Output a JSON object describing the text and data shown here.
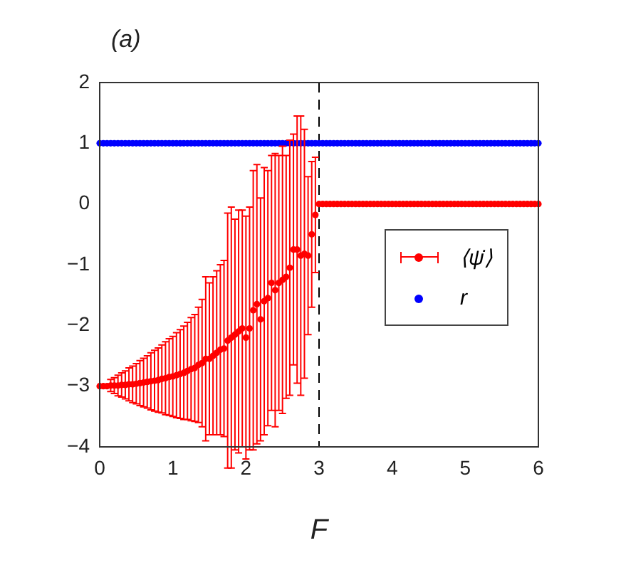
{
  "chart_data": {
    "type": "scatter",
    "title": "(a)",
    "xlabel": "F",
    "xlim": [
      0,
      6
    ],
    "xticks": [
      0,
      1,
      2,
      3,
      4,
      5,
      6
    ],
    "ylim": [
      -4,
      2
    ],
    "yticks": [
      -4,
      -3,
      -2,
      -1,
      0,
      1,
      2
    ],
    "grid": false,
    "legend": "right",
    "marker": "circle",
    "ref_lines": [
      {
        "axis": "x",
        "value": 3,
        "color": "#000000",
        "line_style": "dashed"
      }
    ],
    "series": [
      {
        "name": "⟨ψ̇⟩",
        "color": "#ff0000",
        "x": [
          0,
          0.05,
          0.1,
          0.15,
          0.2,
          0.25,
          0.3,
          0.35,
          0.4,
          0.45,
          0.5,
          0.55,
          0.6,
          0.65,
          0.7,
          0.75,
          0.8,
          0.85,
          0.9,
          0.95,
          1,
          1.05,
          1.1,
          1.15,
          1.2,
          1.25,
          1.3,
          1.35,
          1.4,
          1.45,
          1.5,
          1.55,
          1.6,
          1.65,
          1.7,
          1.75,
          1.8,
          1.85,
          1.9,
          1.95,
          2,
          2.05,
          2.1,
          2.15,
          2.2,
          2.25,
          2.3,
          2.35,
          2.4,
          2.45,
          2.5,
          2.55,
          2.6,
          2.65,
          2.7,
          2.75,
          2.8,
          2.85,
          2.9,
          2.95,
          3,
          3.05,
          3.1,
          3.15,
          3.2,
          3.25,
          3.3,
          3.35,
          3.4,
          3.45,
          3.5,
          3.55,
          3.6,
          3.65,
          3.7,
          3.75,
          3.8,
          3.85,
          3.9,
          3.95,
          4,
          4.05,
          4.1,
          4.15,
          4.2,
          4.25,
          4.3,
          4.35,
          4.4,
          4.45,
          4.5,
          4.55,
          4.6,
          4.65,
          4.7,
          4.75,
          4.8,
          4.85,
          4.9,
          4.95,
          5,
          5.05,
          5.1,
          5.15,
          5.2,
          5.25,
          5.3,
          5.35,
          5.4,
          5.45,
          5.5,
          5.55,
          5.6,
          5.65,
          5.7,
          5.75,
          5.8,
          5.85,
          5.9,
          5.95,
          6
        ],
        "values": [
          -3,
          -3,
          -3,
          -2.99,
          -2.99,
          -2.99,
          -2.98,
          -2.98,
          -2.97,
          -2.97,
          -2.96,
          -2.95,
          -2.94,
          -2.93,
          -2.92,
          -2.91,
          -2.9,
          -2.88,
          -2.87,
          -2.85,
          -2.84,
          -2.82,
          -2.8,
          -2.78,
          -2.75,
          -2.72,
          -2.7,
          -2.65,
          -2.62,
          -2.55,
          -2.55,
          -2.5,
          -2.45,
          -2.4,
          -2.38,
          -2.25,
          -2.2,
          -2.15,
          -2.1,
          -2.05,
          -2.2,
          -2.05,
          -1.75,
          -1.65,
          -1.9,
          -1.6,
          -1.55,
          -1.3,
          -1.42,
          -1.3,
          -1.25,
          -1.2,
          -1.05,
          -0.75,
          -0.75,
          -0.85,
          -0.82,
          -0.85,
          -0.5,
          -0.18,
          0,
          0,
          0,
          0,
          0,
          0,
          0,
          0,
          0,
          0,
          0,
          0,
          0,
          0,
          0,
          0,
          0,
          0,
          0,
          0,
          0,
          0,
          0,
          0,
          0,
          0,
          0,
          0,
          0,
          0,
          0,
          0,
          0,
          0,
          0,
          0,
          0,
          0,
          0,
          0,
          0,
          0,
          0,
          0,
          0,
          0,
          0,
          0,
          0,
          0,
          0,
          0,
          0,
          0,
          0,
          0,
          0,
          0,
          0,
          0,
          0
        ],
        "errors": [
          null,
          null,
          null,
          0.1,
          0.13,
          0.17,
          0.2,
          0.23,
          0.27,
          0.3,
          0.33,
          0.37,
          0.4,
          0.43,
          0.47,
          0.5,
          0.53,
          0.56,
          0.6,
          0.63,
          0.66,
          0.7,
          0.73,
          0.77,
          0.8,
          0.85,
          0.88,
          0.95,
          1.05,
          1.35,
          1.25,
          1.3,
          1.35,
          1.4,
          1.45,
          2.1,
          2.15,
          1.9,
          2,
          1.95,
          2,
          2,
          2.3,
          2.3,
          2,
          2.2,
          2.1,
          2.1,
          2.25,
          2.1,
          2.2,
          2,
          2.1,
          1.9,
          2.2,
          2.3,
          2.05,
          1.3,
          1.2,
          0.95,
          null,
          null,
          null,
          null,
          null,
          null,
          null,
          null,
          null,
          null,
          null,
          null,
          null,
          null,
          null,
          null,
          null,
          null,
          null,
          null,
          null,
          null,
          null,
          null,
          null,
          null,
          null,
          null,
          null,
          null,
          null,
          null,
          null,
          null,
          null,
          null,
          null,
          null,
          null,
          null,
          null,
          null,
          null,
          null,
          null,
          null,
          null,
          null,
          null,
          null,
          null,
          null,
          null,
          null,
          null,
          null,
          null,
          null,
          null,
          null,
          null
        ]
      },
      {
        "name": "r",
        "color": "#0000ff",
        "x": [
          0,
          0.05,
          0.1,
          0.15,
          0.2,
          0.25,
          0.3,
          0.35,
          0.4,
          0.45,
          0.5,
          0.55,
          0.6,
          0.65,
          0.7,
          0.75,
          0.8,
          0.85,
          0.9,
          0.95,
          1,
          1.05,
          1.1,
          1.15,
          1.2,
          1.25,
          1.3,
          1.35,
          1.4,
          1.45,
          1.5,
          1.55,
          1.6,
          1.65,
          1.7,
          1.75,
          1.8,
          1.85,
          1.9,
          1.95,
          2,
          2.05,
          2.1,
          2.15,
          2.2,
          2.25,
          2.3,
          2.35,
          2.4,
          2.45,
          2.5,
          2.55,
          2.6,
          2.65,
          2.7,
          2.75,
          2.8,
          2.85,
          2.9,
          2.95,
          3,
          3.05,
          3.1,
          3.15,
          3.2,
          3.25,
          3.3,
          3.35,
          3.4,
          3.45,
          3.5,
          3.55,
          3.6,
          3.65,
          3.7,
          3.75,
          3.8,
          3.85,
          3.9,
          3.95,
          4,
          4.05,
          4.1,
          4.15,
          4.2,
          4.25,
          4.3,
          4.35,
          4.4,
          4.45,
          4.5,
          4.55,
          4.6,
          4.65,
          4.7,
          4.75,
          4.8,
          4.85,
          4.9,
          4.95,
          5,
          5.05,
          5.1,
          5.15,
          5.2,
          5.25,
          5.3,
          5.35,
          5.4,
          5.45,
          5.5,
          5.55,
          5.6,
          5.65,
          5.7,
          5.75,
          5.8,
          5.85,
          5.9,
          5.95,
          6
        ],
        "values": [
          1,
          1,
          1,
          1,
          1,
          1,
          1,
          1,
          1,
          1,
          1,
          1,
          1,
          1,
          1,
          1,
          1,
          1,
          1,
          1,
          1,
          1,
          1,
          1,
          1,
          1,
          1,
          1,
          1,
          1,
          1,
          1,
          1,
          1,
          1,
          1,
          1,
          1,
          1,
          1,
          1,
          1,
          1,
          1,
          1,
          1,
          1,
          1,
          1,
          1,
          1,
          1,
          1,
          1,
          1,
          1,
          1,
          1,
          1,
          1,
          1,
          1,
          1,
          1,
          1,
          1,
          1,
          1,
          1,
          1,
          1,
          1,
          1,
          1,
          1,
          1,
          1,
          1,
          1,
          1,
          1,
          1,
          1,
          1,
          1,
          1,
          1,
          1,
          1,
          1,
          1,
          1,
          1,
          1,
          1,
          1,
          1,
          1,
          1,
          1,
          1,
          1,
          1,
          1,
          1,
          1,
          1,
          1,
          1,
          1,
          1,
          1,
          1,
          1,
          1,
          1,
          1,
          1,
          1,
          1,
          1
        ]
      }
    ]
  }
}
